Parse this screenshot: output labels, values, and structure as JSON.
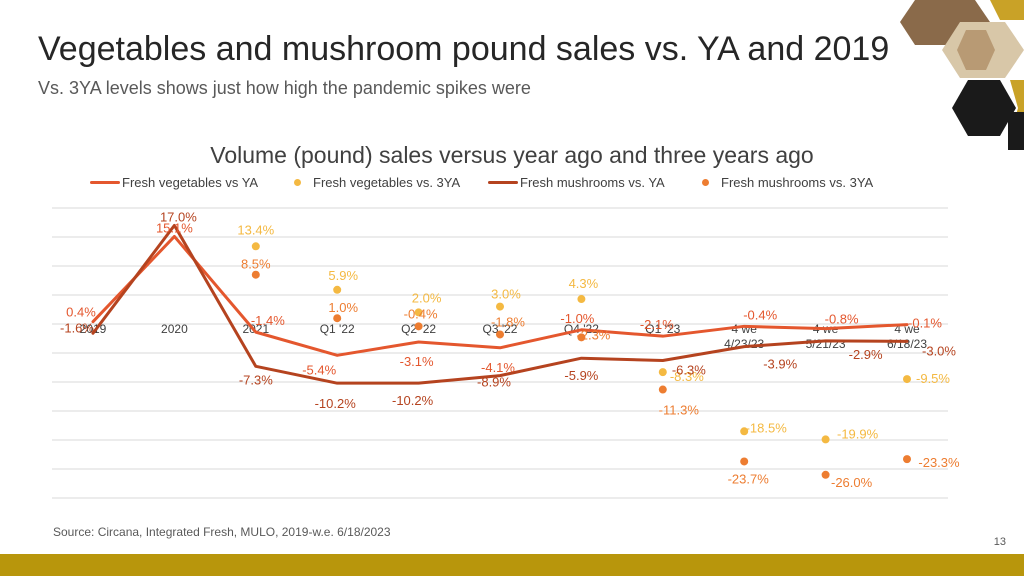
{
  "slide": {
    "title": "Vegetables and mushroom pound sales vs. YA and 2019",
    "subtitle": "Vs. 3YA levels shows just how high the pandemic spikes were",
    "source": "Source: Circana, Integrated Fresh, MULO, 2019-w.e. 6/18/2023",
    "page_number": "13"
  },
  "colors": {
    "veg_line": "#e4572e",
    "veg_3ya": "#f4b942",
    "mush_line": "#b5431f",
    "mush_3ya": "#ed7d31",
    "footer": "#b8960c",
    "hex_dark": "#1a1a1a",
    "hex_gold": "#c9a227"
  },
  "decorations": [
    "mushroom-photo-hexagons"
  ],
  "chart_data": {
    "type": "line",
    "title": "Volume (pound) sales versus year ago and three years ago",
    "categories": [
      [
        "2019"
      ],
      [
        "2020"
      ],
      [
        "2021"
      ],
      [
        "Q1 '22"
      ],
      [
        "Q2 '22"
      ],
      [
        "Q3 '22"
      ],
      [
        "Q4 '22"
      ],
      [
        "Q1 '23"
      ],
      [
        "4 we",
        "4/23/23"
      ],
      [
        "4 we",
        "5/21/23"
      ],
      [
        "4 we",
        "6/18/23"
      ]
    ],
    "ylim": [
      -30,
      20
    ],
    "grid": true,
    "legend_position": "top",
    "series": [
      {
        "name": "Fresh vegetables vs YA",
        "type": "line",
        "color_key": "veg_line",
        "values": [
          0.4,
          15.1,
          -1.4,
          -5.4,
          -3.1,
          -4.1,
          -1.0,
          -2.1,
          -0.4,
          -0.8,
          -0.1
        ],
        "labels": [
          "0.4%",
          "15.1%",
          "-1.4%",
          "-5.4%",
          "-3.1%",
          "-4.1%",
          "-1.0%",
          "-2.1%",
          "-0.4%",
          "-0.8%",
          "-0.1%"
        ]
      },
      {
        "name": "Fresh vegetables vs. 3YA",
        "type": "scatter",
        "color_key": "veg_3ya",
        "values": [
          null,
          null,
          13.4,
          5.9,
          2.0,
          3.0,
          4.3,
          -8.3,
          -18.5,
          -19.9,
          -9.5
        ],
        "labels": [
          null,
          null,
          "13.4%",
          "5.9%",
          "2.0%",
          "3.0%",
          "4.3%",
          "-8.3%",
          "-18.5%",
          "-19.9%",
          "-9.5%"
        ]
      },
      {
        "name": "Fresh mushrooms vs. YA",
        "type": "line",
        "color_key": "mush_line",
        "values": [
          -1.6,
          17.0,
          -7.3,
          -10.2,
          -10.2,
          -8.9,
          -5.9,
          -6.3,
          -3.9,
          -2.9,
          -3.0
        ],
        "labels": [
          "-1.6%",
          "17.0%",
          "-7.3%",
          "-10.2%",
          "-10.2%",
          "-8.9%",
          "-5.9%",
          "-6.3%",
          "-3.9%",
          "-2.9%",
          "-3.0%"
        ]
      },
      {
        "name": "Fresh mushrooms vs. 3YA",
        "type": "scatter",
        "color_key": "mush_3ya",
        "values": [
          null,
          null,
          8.5,
          1.0,
          -0.4,
          -1.8,
          -2.3,
          -11.3,
          -23.7,
          -26.0,
          -23.3
        ],
        "labels": [
          null,
          null,
          "8.5%",
          "1.0%",
          "-0.4%",
          "-1.8%",
          "-2.3%",
          "-11.3%",
          "-23.7%",
          "-26.0%",
          "-23.3%"
        ]
      }
    ]
  }
}
